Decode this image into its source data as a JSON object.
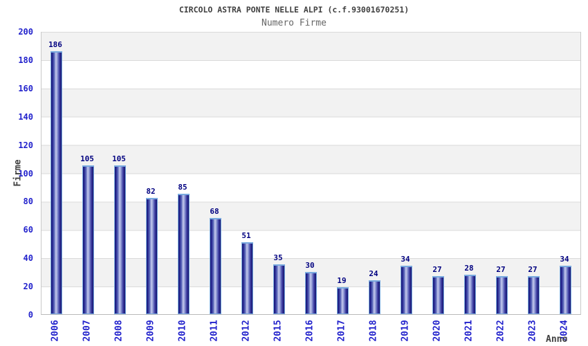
{
  "chart_data": {
    "type": "bar",
    "title": "CIRCOLO ASTRA PONTE NELLE ALPI (c.f.93001670251)",
    "subtitle": "Numero Firme",
    "xlabel": "Anno",
    "ylabel": "Firme",
    "categories": [
      "2006",
      "2007",
      "2008",
      "2009",
      "2010",
      "2011",
      "2012",
      "2015",
      "2016",
      "2017",
      "2018",
      "2019",
      "2020",
      "2021",
      "2022",
      "2023",
      "2024"
    ],
    "values": [
      186,
      105,
      105,
      82,
      85,
      68,
      51,
      35,
      30,
      19,
      24,
      34,
      27,
      28,
      27,
      27,
      34
    ],
    "ylim": [
      0,
      200
    ],
    "yticks": [
      0,
      20,
      40,
      60,
      80,
      100,
      120,
      140,
      160,
      180,
      200
    ],
    "legend": "none",
    "grid": "horizontal-bands",
    "colors": {
      "bar_edge_dark": "#15156e",
      "bar_highlight": "#c6cbee",
      "bar_outline": "#79aadf",
      "value_label": "#000080",
      "tick_label": "#2222cc",
      "axis_title": "#404040",
      "band_gray": "#f2f2f2",
      "grid_line": "#dadada"
    }
  }
}
